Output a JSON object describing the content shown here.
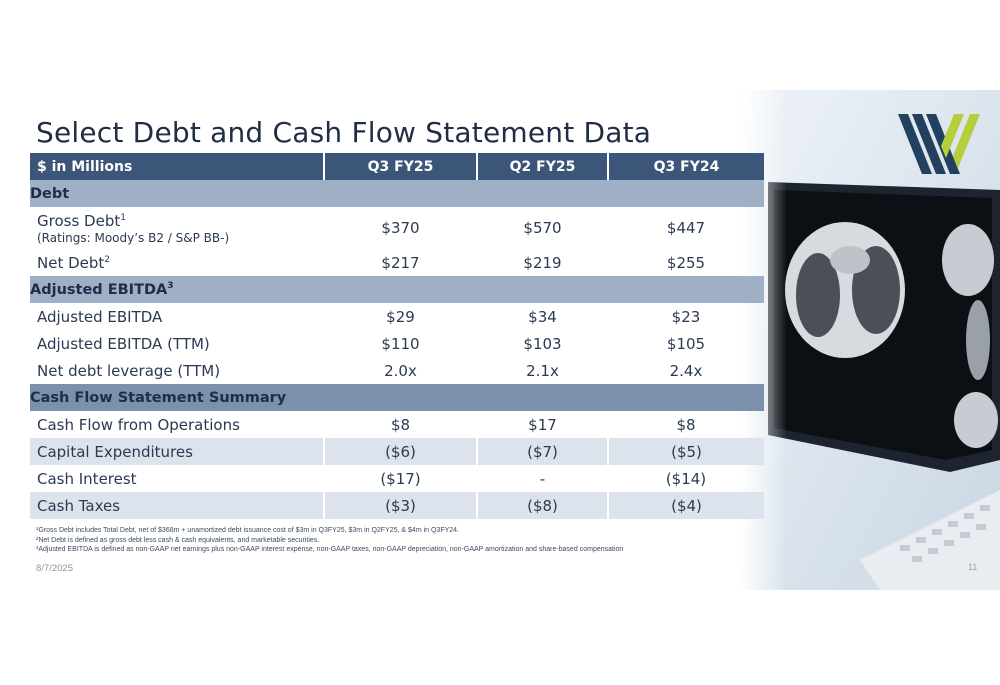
{
  "title": "Select Debt and Cash Flow Statement Data",
  "table": {
    "header": [
      "$ in Millions",
      "Q3 FY25",
      "Q2 FY25",
      "Q3 FY24"
    ],
    "sections": {
      "debt": "Debt",
      "ebitda": "Adjusted EBITDA",
      "ebitda_sup": "3",
      "cashflow": "Cash Flow Statement Summary"
    },
    "rows": {
      "gross_debt": {
        "label": "Gross Debt",
        "sup": "1",
        "sub": "(Ratings: Moody’s B2 / S&P BB-)",
        "values": [
          "$370",
          "$570",
          "$447"
        ]
      },
      "net_debt": {
        "label": "Net Debt",
        "sup": "2",
        "values": [
          "$217",
          "$219",
          "$255"
        ]
      },
      "adj_ebitda": {
        "label": "Adjusted EBITDA",
        "values": [
          "$29",
          "$34",
          "$23"
        ]
      },
      "adj_ebitda_ttm": {
        "label": "Adjusted EBITDA (TTM)",
        "values": [
          "$110",
          "$103",
          "$105"
        ]
      },
      "leverage": {
        "label": "Net debt leverage (TTM)",
        "values": [
          "2.0x",
          "2.1x",
          "2.4x"
        ]
      },
      "cfo": {
        "label": "Cash Flow from Operations",
        "values": [
          "$8",
          "$17",
          "$8"
        ]
      },
      "capex": {
        "label": "Capital Expenditures",
        "values": [
          "($6)",
          "($7)",
          "($5)"
        ]
      },
      "interest": {
        "label": "Cash Interest",
        "values": [
          "($17)",
          "-",
          "($14)"
        ]
      },
      "taxes": {
        "label": "Cash Taxes",
        "values": [
          "($3)",
          "($8)",
          "($4)"
        ]
      }
    }
  },
  "footnotes": [
    "¹Gross Debt includes Total Debt, net of $368m + unamortized debt issuance cost of $3m in Q3FY25, $3m in Q2FY25, & $4m in Q3FY24.",
    "²Net Debt is defined as gross debt less cash & cash equivalents, and marketable securities.",
    "³Adjusted EBITDA is defined as non-GAAP net earnings plus non-GAAP interest expense, non-GAAP taxes, non-GAAP depreciation, non-GAAP amortization and share-based compensation"
  ],
  "date": "8/7/2025",
  "page_number": "11",
  "colors": {
    "header_bg": "#3b5678",
    "section_bg": "#9fb0c6",
    "section_dark_bg": "#7b90ab",
    "shaded_row": "#dde3ec",
    "logo_navy": "#24405f",
    "logo_green": "#b5cf3c"
  },
  "icons": [
    "company-logo-icon",
    "ct-scan-monitor-illustration"
  ]
}
